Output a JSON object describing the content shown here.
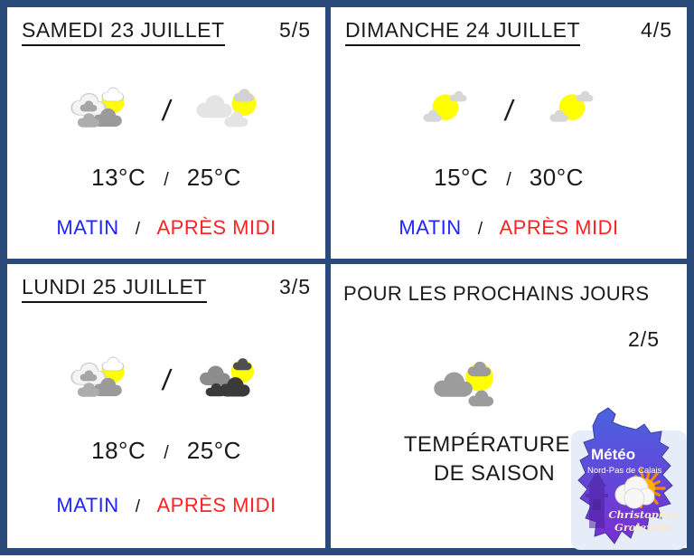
{
  "colors": {
    "frame_navy": "#2b4a7c",
    "morning_blue": "#2222ff",
    "afternoon_red": "#ff2222",
    "sun_yellow": "#ffff00"
  },
  "panels": [
    {
      "title": "SAMEDI 23 JUILLET",
      "rating": "5/5",
      "icon_separator": "/",
      "morning_icon": "sun-behind-clouds-icon",
      "afternoon_icon": "sun-with-light-clouds-icon",
      "morning_temp": "13°C",
      "temp_separator": "/",
      "afternoon_temp": "25°C",
      "morning_label": "MATIN",
      "period_separator": "/",
      "afternoon_label": "APRÈS MIDI"
    },
    {
      "title": "DIMANCHE 24 JUILLET",
      "rating": "4/5",
      "icon_separator": "/",
      "morning_icon": "sun-small-clouds-icon",
      "afternoon_icon": "sun-small-clouds-icon",
      "morning_temp": "15°C",
      "temp_separator": "/",
      "afternoon_temp": "30°C",
      "morning_label": "MATIN",
      "period_separator": "/",
      "afternoon_label": "APRÈS MIDI"
    },
    {
      "title": "LUNDI 25 JUILLET",
      "rating": "3/5",
      "icon_separator": "/",
      "morning_icon": "sun-behind-clouds-icon",
      "afternoon_icon": "sun-with-dark-clouds-icon",
      "morning_temp": "18°C",
      "temp_separator": "/",
      "afternoon_temp": "25°C",
      "morning_label": "MATIN",
      "period_separator": "/",
      "afternoon_label": "APRÈS MIDI"
    }
  ],
  "outlook": {
    "title": "POUR LES PROCHAINS JOURS",
    "rating": "2/5",
    "icon": "sun-behind-gray-clouds-icon",
    "message_line1": "TEMPÉRATURES",
    "message_line2": "DE SAISON",
    "logo": {
      "brand": "Météo",
      "region": "Nord-Pas de Calais",
      "author_line1": "Christopher",
      "author_line2": "Grolewski"
    }
  }
}
